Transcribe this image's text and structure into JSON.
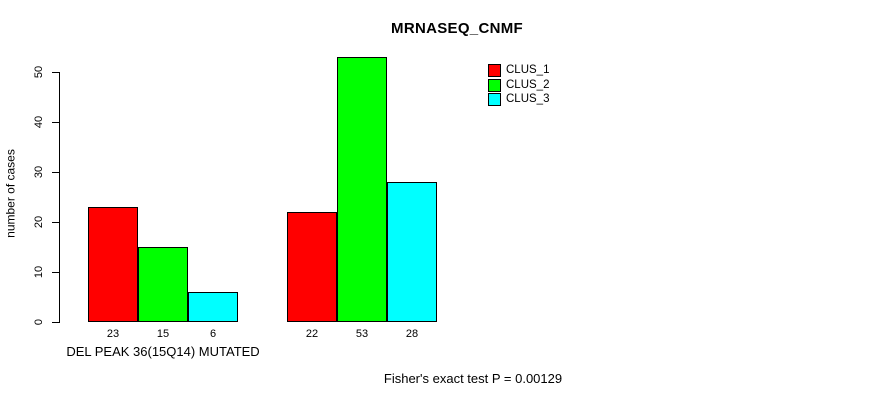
{
  "chart_data": {
    "type": "bar",
    "title": "MRNASEQ_CNMF",
    "ylabel": "number of cases",
    "xlabel": "DEL PEAK 36(15Q14) MUTATED",
    "annotation": "Fisher's exact test P = 0.00129",
    "ylim": [
      0,
      55
    ],
    "yticks": [
      0,
      10,
      20,
      30,
      40,
      50
    ],
    "grid": false,
    "legend_position": "top-right",
    "bar_value_labels_shown": true,
    "groups": [
      "DEL PEAK 36(15Q14) MUTATED",
      ""
    ],
    "series": [
      {
        "name": "CLUS_1",
        "color": "#ff0000",
        "values": [
          23,
          22
        ]
      },
      {
        "name": "CLUS_2",
        "color": "#00ff00",
        "values": [
          15,
          53
        ]
      },
      {
        "name": "CLUS_3",
        "color": "#00ffff",
        "values": [
          6,
          28
        ]
      }
    ],
    "colors": {
      "axis": "#000000",
      "text": "#000000",
      "background": "#ffffff"
    }
  }
}
